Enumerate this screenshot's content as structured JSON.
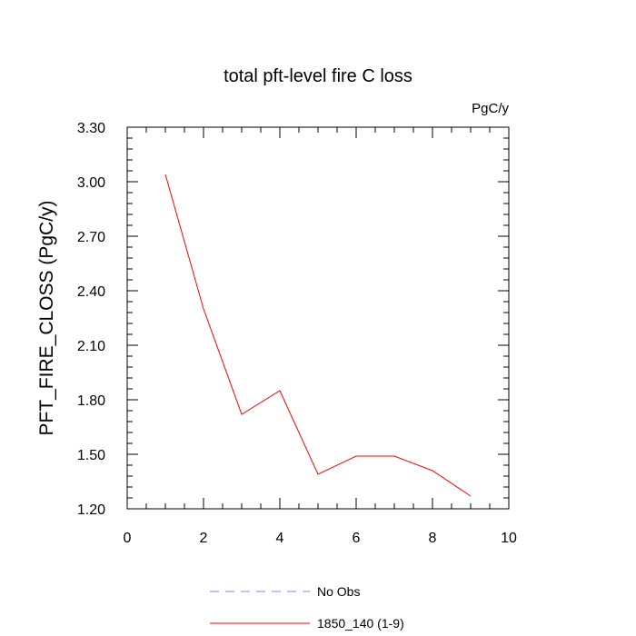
{
  "chart_data": {
    "type": "line",
    "title": "total pft-level fire C loss",
    "units_label": "PgC/y",
    "xlabel": "",
    "ylabel": "PFT_FIRE_CLOSS  (PgC/y)",
    "xlim": [
      0,
      10
    ],
    "ylim": [
      1.2,
      3.3
    ],
    "x_ticks": [
      0,
      2,
      4,
      6,
      8,
      10
    ],
    "x_tick_labels": [
      "0",
      "2",
      "4",
      "6",
      "8",
      "10"
    ],
    "y_ticks": [
      1.2,
      1.5,
      1.8,
      2.1,
      2.4,
      2.7,
      3.0,
      3.3
    ],
    "y_tick_labels": [
      "1.20",
      "1.50",
      "1.80",
      "2.10",
      "2.40",
      "2.70",
      "3.00",
      "3.30"
    ],
    "grid": false,
    "legend_position": "bottom",
    "series": [
      {
        "name": "No Obs",
        "color": "#8080ff",
        "dash": true,
        "x": [],
        "values": []
      },
      {
        "name": "1850_140 (1-9)",
        "color": "#ff0000",
        "dash": false,
        "x": [
          1,
          2,
          3,
          4,
          5,
          6,
          7,
          8,
          9
        ],
        "values": [
          3.04,
          2.3,
          1.72,
          1.85,
          1.39,
          1.49,
          1.49,
          1.41,
          1.27
        ]
      }
    ]
  }
}
